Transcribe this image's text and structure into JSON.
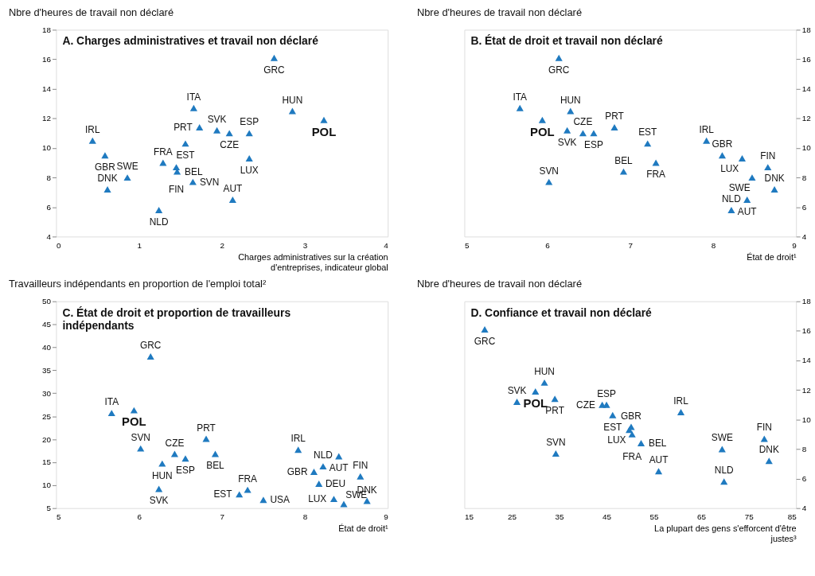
{
  "chart_data": [
    {
      "type": "scatter",
      "title": "A. Charges administratives et travail non déclaré",
      "xlabel": "Charges administratives sur la création d'entreprises, indicateur global",
      "ylabel": "Nbre d'heures de travail non déclaré",
      "xlim": [
        0,
        4
      ],
      "xticks": [
        0,
        1,
        2,
        3,
        4
      ],
      "ylim": [
        4,
        18
      ],
      "yticks": [
        4,
        6,
        8,
        10,
        12,
        14,
        16,
        18
      ],
      "grid": false,
      "marker": "triangle",
      "series": [
        {
          "color": "#1f7ac0",
          "x": [
            2.63,
            1.66,
            2.85,
            1.73,
            1.94,
            2.09,
            2.33,
            1.56,
            0.44,
            0.59,
            2.33,
            1.29,
            1.45,
            1.46,
            0.86,
            1.65,
            0.62,
            2.13,
            1.24
          ],
          "values": [
            16.1,
            12.7,
            12.5,
            11.4,
            11.2,
            11.0,
            11.0,
            10.3,
            10.5,
            9.5,
            9.3,
            9.0,
            8.7,
            8.4,
            8.0,
            7.7,
            7.2,
            6.5,
            5.8
          ],
          "value_labels": [
            "GRC",
            "ITA",
            "HUN",
            "PRT",
            "SVK",
            "CZE",
            "ESP",
            "EST",
            "IRL",
            "GBR",
            "LUX",
            "FRA",
            "FIN",
            "BEL",
            "SWE",
            "SVN",
            "DNK",
            "AUT",
            "NLD"
          ]
        },
        {
          "color": "#1f7ac0",
          "x": [
            3.23
          ],
          "values": [
            11.9
          ],
          "value_labels": [
            "POL"
          ]
        }
      ]
    },
    {
      "type": "scatter",
      "title": "B. État de droit et travail non déclaré",
      "xlabel": "État de droit¹",
      "y2label": "Nbre d'heures de travail non déclaré",
      "xlim": [
        5,
        9
      ],
      "xticks": [
        5,
        6,
        7,
        8,
        9
      ],
      "y2lim": [
        4,
        18
      ],
      "y2ticks": [
        4,
        6,
        8,
        10,
        12,
        14,
        16,
        18
      ],
      "grid": false,
      "marker": "triangle",
      "series": [
        {
          "axis": "y2",
          "color": "#1f7ac0",
          "x": [
            6.14,
            5.67,
            6.28,
            6.24,
            6.43,
            6.56,
            6.81,
            7.21,
            7.92,
            8.11,
            8.35,
            8.66,
            8.47,
            8.74,
            8.41,
            8.22,
            6.92,
            7.31,
            6.02
          ],
          "values": [
            16.1,
            12.7,
            12.5,
            11.2,
            11.0,
            11.0,
            11.4,
            10.3,
            10.5,
            9.5,
            9.3,
            8.7,
            8.0,
            7.2,
            6.5,
            5.8,
            8.4,
            9.0,
            7.7
          ],
          "value_labels": [
            "GRC",
            "ITA",
            "HUN",
            "SVK",
            "CZE",
            "ESP",
            "PRT",
            "EST",
            "IRL",
            "GBR",
            "LUX",
            "FIN",
            "SWE",
            "DNK",
            "AUT",
            "NLD",
            "BEL",
            "FRA",
            "SVN"
          ]
        },
        {
          "axis": "y2",
          "color": "#1f7ac0",
          "x": [
            5.94
          ],
          "values": [
            11.9
          ],
          "value_labels": [
            "POL"
          ]
        }
      ]
    },
    {
      "type": "scatter",
      "title": "C. État de droit et proportion de travailleurs indépendants",
      "xlabel": "État de droit¹",
      "ylabel": "Travailleurs indépendants en proportion de l'emploi total²",
      "xlim": [
        5,
        9
      ],
      "xticks": [
        5,
        6,
        7,
        8,
        9
      ],
      "ylim": [
        5,
        50
      ],
      "yticks": [
        5,
        10,
        15,
        20,
        25,
        30,
        35,
        40,
        45,
        50
      ],
      "grid": false,
      "marker": "triangle",
      "series": [
        {
          "color": "#1f7ac0",
          "x": [
            6.14,
            5.67,
            6.02,
            6.43,
            6.56,
            6.28,
            6.24,
            6.81,
            6.92,
            7.21,
            7.31,
            7.5,
            7.92,
            8.11,
            8.22,
            8.41,
            8.17,
            8.35,
            8.47,
            8.67,
            8.75
          ],
          "values": [
            38,
            25.7,
            18.0,
            16.8,
            15.8,
            14.7,
            9.2,
            20.1,
            16.8,
            8.0,
            9.0,
            6.8,
            17.7,
            12.9,
            14.1,
            16.3,
            10.3,
            7.0,
            5.9,
            11.9,
            6.6
          ],
          "value_labels": [
            "GRC",
            "ITA",
            "SVN",
            "CZE",
            "ESP",
            "HUN",
            "SVK",
            "PRT",
            "BEL",
            "EST",
            "FRA",
            "USA",
            "IRL",
            "GBR",
            "NLD",
            "AUT",
            "DEU",
            "LUX",
            "SWE",
            "FIN",
            "DNK"
          ]
        },
        {
          "color": "#1f7ac0",
          "x": [
            5.94
          ],
          "values": [
            26.3
          ],
          "value_labels": [
            "POL"
          ]
        }
      ]
    },
    {
      "type": "scatter",
      "title": "D. Confiance et travail non déclaré",
      "xlabel": "La plupart des gens s'efforcent d'être justes³",
      "y2label": "Nbre d'heures de travail non déclaré",
      "xlim": [
        15,
        85
      ],
      "xticks": [
        15,
        25,
        35,
        45,
        55,
        65,
        75,
        85
      ],
      "y2lim": [
        4,
        18
      ],
      "y2ticks": [
        4,
        6,
        8,
        10,
        12,
        14,
        16,
        18
      ],
      "grid": false,
      "marker": "triangle",
      "series": [
        {
          "axis": "y2",
          "color": "#1f7ac0",
          "x": [
            19.3,
            31.9,
            26.1,
            34.1,
            45.0,
            44.1,
            46.3,
            50.2,
            49.8,
            50.4,
            52.3,
            60.7,
            34.3,
            56.0,
            69.4,
            69.8,
            78.3,
            79.3
          ],
          "values": [
            16.1,
            12.5,
            11.2,
            11.4,
            11.0,
            11.0,
            10.3,
            9.5,
            9.3,
            9.0,
            8.4,
            10.5,
            7.7,
            6.5,
            8.0,
            5.8,
            8.7,
            7.2
          ],
          "value_labels": [
            "GRC",
            "HUN",
            "SVK",
            "PRT",
            "ESP",
            "CZE",
            "EST",
            "GBR",
            "LUX",
            "FRA",
            "BEL",
            "IRL",
            "SVN",
            "AUT",
            "SWE",
            "NLD",
            "FIN",
            "DNK"
          ]
        },
        {
          "axis": "y2",
          "color": "#1f7ac0",
          "x": [
            30.0
          ],
          "values": [
            11.9
          ],
          "value_labels": [
            "POL"
          ]
        }
      ]
    }
  ]
}
